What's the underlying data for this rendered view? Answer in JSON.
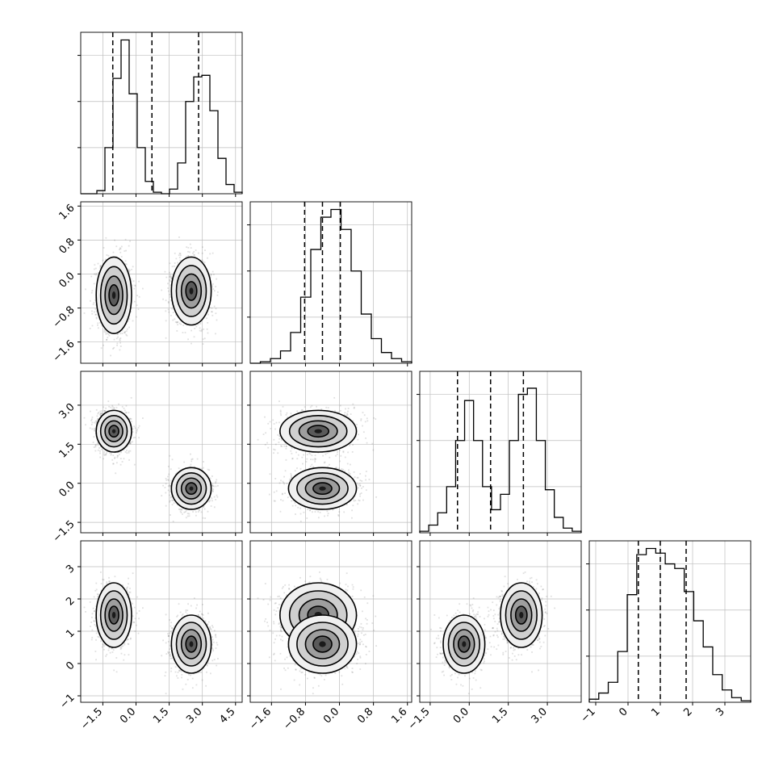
{
  "chart_data": {
    "type": "corner",
    "ndim": 4,
    "grid": true,
    "quantiles": [
      0.16,
      0.5,
      0.84
    ],
    "parameters": [
      {
        "lim": [
          -2.5,
          4.8
        ],
        "ticks": [
          -1.5,
          0.0,
          1.5,
          3.0,
          4.5
        ],
        "tick_labels": [
          "−1.5",
          "0.0",
          "1.5",
          "3.0",
          "4.5"
        ],
        "quantile_values": [
          -1.05,
          0.72,
          2.83
        ],
        "modes": [
          {
            "mu": -1.0,
            "sigma": 0.42,
            "w": 0.5
          },
          {
            "mu": 2.5,
            "sigma": 0.45,
            "w": 0.5
          }
        ]
      },
      {
        "lim": [
          -2.1,
          1.7
        ],
        "ticks": [
          -1.6,
          -0.8,
          0.0,
          0.8,
          1.6
        ],
        "tick_labels": [
          "−1.6",
          "−0.8",
          "0.0",
          "0.8",
          "1.6"
        ],
        "quantile_values": [
          -0.82,
          -0.4,
          0.02
        ],
        "modes": [
          {
            "mu": -0.4,
            "sigma": 0.42,
            "w": 1.0
          }
        ]
      },
      {
        "lim": [
          -1.9,
          4.3
        ],
        "ticks": [
          -1.5,
          0.0,
          1.5,
          3.0
        ],
        "tick_labels": [
          "−1.5",
          "0.0",
          "1.5",
          "3.0"
        ],
        "quantile_values": [
          -0.45,
          0.82,
          2.08
        ],
        "modes": [
          {
            "mu": -0.15,
            "sigma": 0.42,
            "w": 0.5
          },
          {
            "mu": 1.95,
            "sigma": 0.42,
            "w": 0.5
          }
        ]
      },
      {
        "lim": [
          -1.2,
          3.8
        ],
        "ticks": [
          -1,
          0,
          1,
          2,
          3
        ],
        "tick_labels": [
          "−1",
          "0",
          "1",
          "2",
          "3"
        ],
        "quantile_values": [
          0.32,
          1.0,
          1.8
        ],
        "modes": [
          {
            "mu": 0.6,
            "sigma": 0.5,
            "w": 0.5
          },
          {
            "mu": 1.5,
            "sigma": 0.5,
            "w": 0.5
          }
        ]
      }
    ],
    "clusters": [
      {
        "center": [
          -1.0,
          -0.5,
          2.0,
          1.5
        ],
        "sigma": [
          0.4,
          0.45,
          0.4,
          0.5
        ]
      },
      {
        "center": [
          2.5,
          -0.4,
          -0.2,
          0.6
        ],
        "sigma": [
          0.45,
          0.4,
          0.4,
          0.45
        ]
      }
    ],
    "histogram_counts": [
      [
        0,
        0,
        0.02,
        0.3,
        0.75,
        1.0,
        0.65,
        0.3,
        0.08,
        0.01,
        0,
        0.03,
        0.2,
        0.6,
        0.76,
        0.77,
        0.54,
        0.23,
        0.06,
        0.01
      ],
      [
        0,
        0.01,
        0.03,
        0.08,
        0.2,
        0.43,
        0.74,
        0.95,
        1.0,
        0.87,
        0.6,
        0.32,
        0.16,
        0.07,
        0.03,
        0.01
      ],
      [
        0.01,
        0.05,
        0.13,
        0.3,
        0.6,
        0.86,
        0.6,
        0.3,
        0.15,
        0.25,
        0.6,
        0.9,
        0.94,
        0.6,
        0.28,
        0.1,
        0.03,
        0.01
      ],
      [
        0.02,
        0.06,
        0.13,
        0.33,
        0.7,
        0.96,
        1.0,
        0.97,
        0.9,
        0.87,
        0.72,
        0.53,
        0.36,
        0.18,
        0.08,
        0.03,
        0.01
      ]
    ]
  }
}
